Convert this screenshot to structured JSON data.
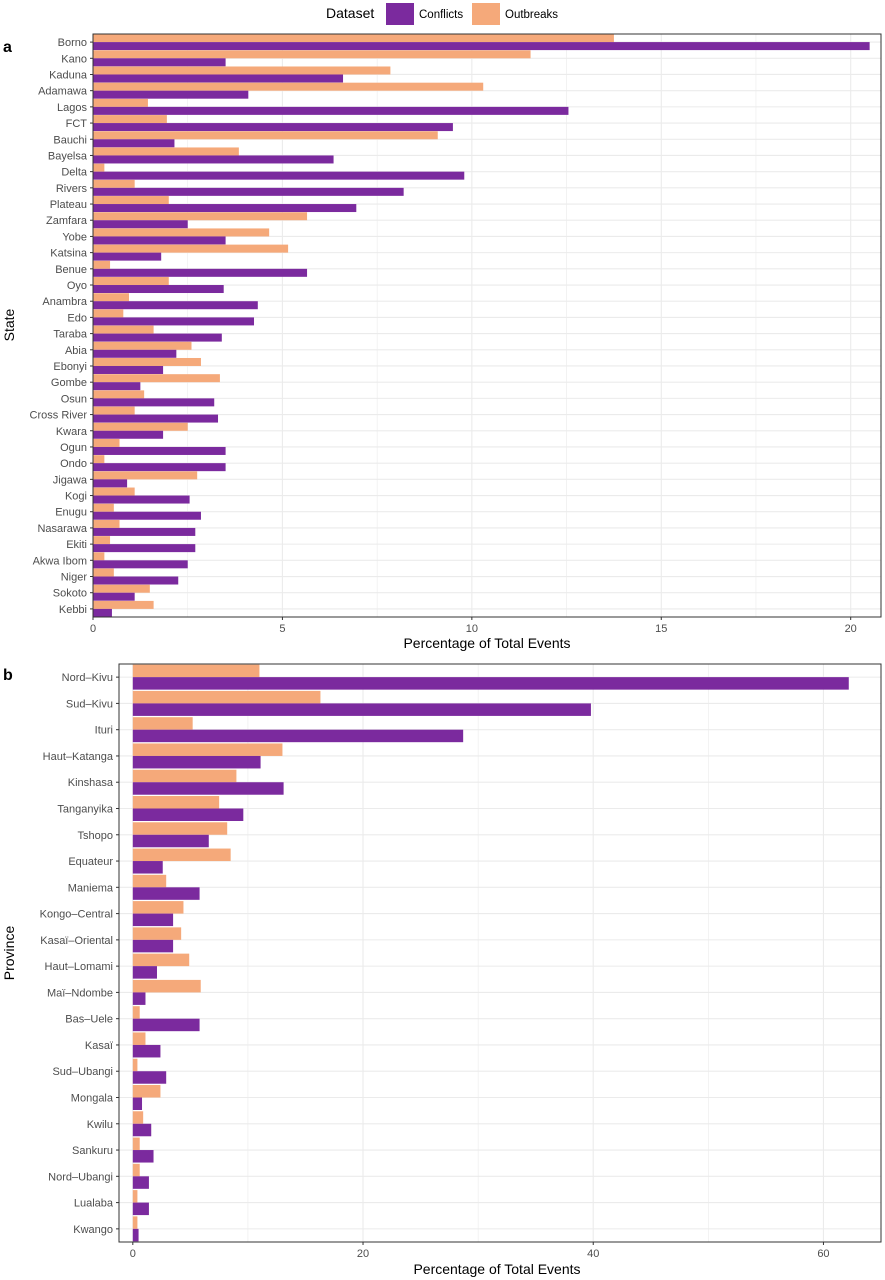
{
  "legend": {
    "title": "Dataset",
    "items": [
      {
        "label": "Conflicts",
        "color": "#7B2A9E"
      },
      {
        "label": "Outbreaks",
        "color": "#F5A97A"
      }
    ]
  },
  "chart_data": [
    {
      "type": "bar",
      "orientation": "horizontal",
      "panel": "a",
      "ylabel": "State",
      "xlabel": "Percentage of Total Events",
      "xlim": [
        0,
        20.8
      ],
      "xticks": [
        0,
        5,
        10,
        15,
        20
      ],
      "grid": true,
      "categories": [
        "Borno",
        "Kano",
        "Kaduna",
        "Adamawa",
        "Lagos",
        "FCT",
        "Bauchi",
        "Bayelsa",
        "Delta",
        "Rivers",
        "Plateau",
        "Zamfara",
        "Yobe",
        "Katsina",
        "Benue",
        "Oyo",
        "Anambra",
        "Edo",
        "Taraba",
        "Abia",
        "Ebonyi",
        "Gombe",
        "Osun",
        "Cross River",
        "Kwara",
        "Ogun",
        "Ondo",
        "Jigawa",
        "Kogi",
        "Enugu",
        "Nasarawa",
        "Ekiti",
        "Akwa Ibom",
        "Niger",
        "Sokoto",
        "Kebbi"
      ],
      "series": [
        {
          "name": "Conflicts",
          "values": [
            20.5,
            3.5,
            6.6,
            4.1,
            12.55,
            9.5,
            2.15,
            6.35,
            9.8,
            8.2,
            6.95,
            2.5,
            3.5,
            1.8,
            5.65,
            3.45,
            4.35,
            4.25,
            3.4,
            2.2,
            1.85,
            1.25,
            3.2,
            3.3,
            1.85,
            3.5,
            3.5,
            0.9,
            2.55,
            2.85,
            2.7,
            2.7,
            2.5,
            2.25,
            1.1,
            0.5
          ]
        },
        {
          "name": "Outbreaks",
          "values": [
            13.75,
            11.55,
            7.85,
            10.3,
            1.45,
            1.95,
            9.1,
            3.85,
            0.3,
            1.1,
            2.0,
            5.65,
            4.65,
            5.15,
            0.45,
            2.0,
            0.95,
            0.8,
            1.6,
            2.6,
            2.85,
            3.35,
            1.35,
            1.1,
            2.5,
            0.7,
            0.3,
            2.75,
            1.1,
            0.55,
            0.7,
            0.45,
            0.3,
            0.55,
            1.5,
            1.6
          ]
        }
      ]
    },
    {
      "type": "bar",
      "orientation": "horizontal",
      "panel": "b",
      "ylabel": "Province",
      "xlabel": "Percentage of Total Events",
      "xlim": [
        -1.2,
        65
      ],
      "xticks": [
        0,
        20,
        40,
        60
      ],
      "grid": true,
      "categories": [
        "Nord–Kivu",
        "Sud–Kivu",
        "Ituri",
        "Haut–Katanga",
        "Kinshasa",
        "Tanganyika",
        "Tshopo",
        "Equateur",
        "Maniema",
        "Kongo–Central",
        "Kasaï–Oriental",
        "Haut–Lomami",
        "Maï–Ndombe",
        "Bas–Uele",
        "Kasaï",
        "Sud–Ubangi",
        "Mongala",
        "Kwilu",
        "Sankuru",
        "Nord–Ubangi",
        "Lualaba",
        "Kwango"
      ],
      "series": [
        {
          "name": "Conflicts",
          "values": [
            62.2,
            39.8,
            28.7,
            11.1,
            13.1,
            9.6,
            6.6,
            2.6,
            5.8,
            3.5,
            3.5,
            2.1,
            1.1,
            5.8,
            2.4,
            2.9,
            0.8,
            1.6,
            1.8,
            1.4,
            1.4,
            0.5
          ]
        },
        {
          "name": "Outbreaks",
          "values": [
            11.0,
            16.3,
            5.2,
            13.0,
            9.0,
            7.5,
            8.2,
            8.5,
            2.9,
            4.4,
            4.2,
            4.9,
            5.9,
            0.6,
            1.1,
            0.4,
            2.4,
            0.9,
            0.6,
            0.6,
            0.4,
            0.4
          ]
        }
      ]
    }
  ]
}
